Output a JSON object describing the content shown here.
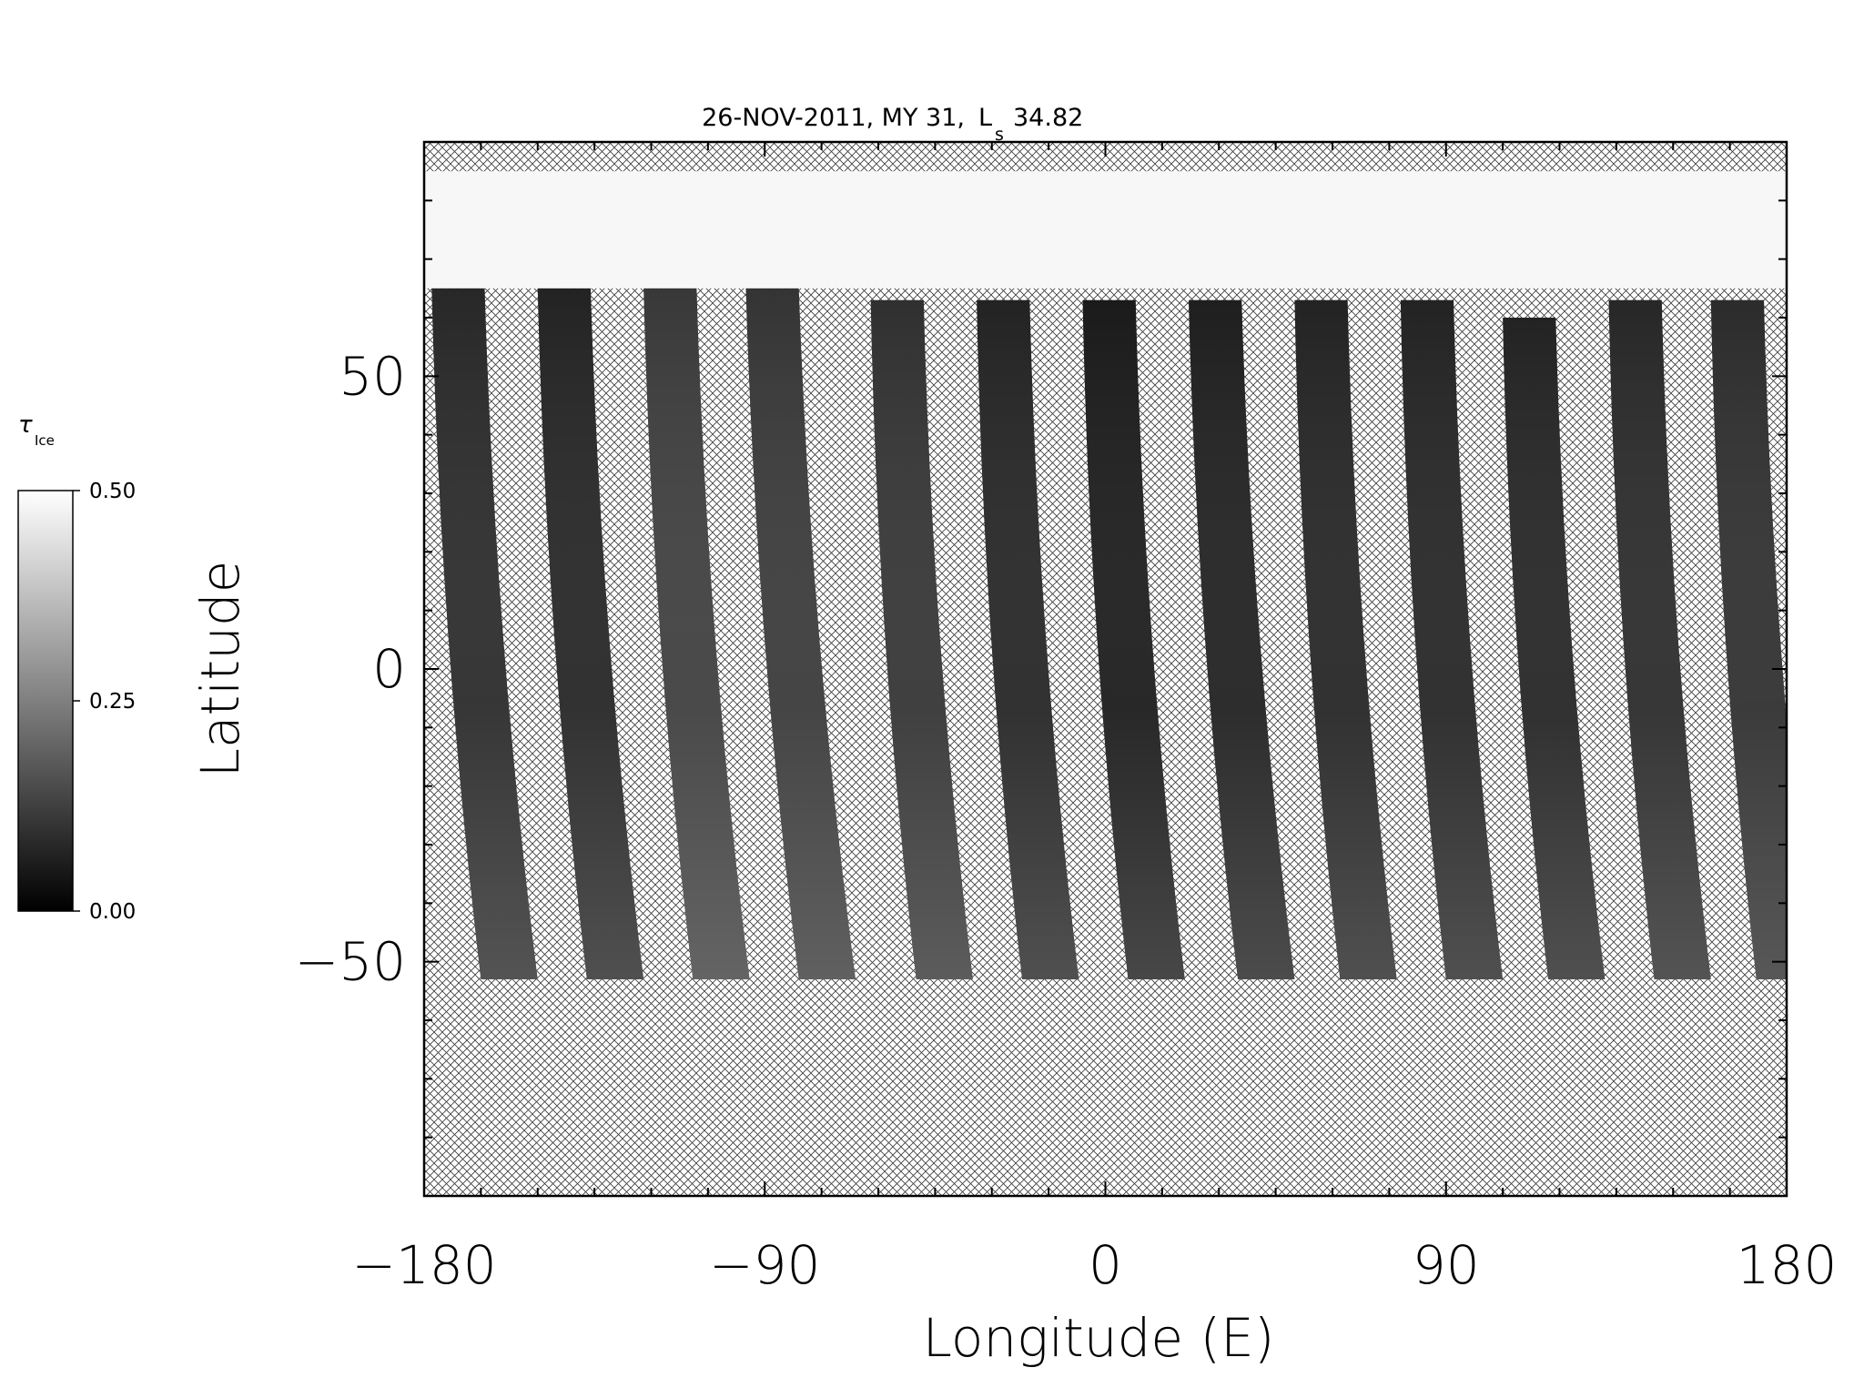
{
  "chart_data": {
    "type": "heatmap",
    "title": "26-NOV-2011, MY 31,",
    "title_ls_symbol": "L",
    "title_ls_subscript": "s",
    "title_ls_value": "34.82",
    "xlabel": "Longitude (E)",
    "ylabel": "Latitude",
    "xlim": [
      -180,
      180
    ],
    "ylim": [
      -90,
      90
    ],
    "x_ticks": [
      -180,
      -90,
      0,
      90,
      180
    ],
    "x_tick_labels": [
      "−180",
      "−90",
      "0",
      "90",
      "180"
    ],
    "y_ticks": [
      -50,
      0,
      50
    ],
    "y_tick_labels": [
      "−50",
      "0",
      "50"
    ],
    "colorbar": {
      "label": "τ",
      "label_subscript": "Ice",
      "range": [
        0.0,
        0.5
      ],
      "ticks": [
        0.0,
        0.25,
        0.5
      ],
      "tick_labels": [
        "0.00",
        "0.25",
        "0.50"
      ],
      "colors": [
        "#000000",
        "#ffffff"
      ]
    },
    "hatched_region": "no data",
    "cap_value": 0.5,
    "cap_latitude_range": [
      65,
      85
    ],
    "swaths": [
      {
        "lon_top": -178,
        "lon_bottom": -165,
        "lat_top": 65,
        "lat_bottom": -53,
        "mean_value": 0.09
      },
      {
        "lon_top": -150,
        "lon_bottom": -137,
        "lat_top": 65,
        "lat_bottom": -53,
        "mean_value": 0.08
      },
      {
        "lon_top": -122,
        "lon_bottom": -109,
        "lat_top": 65,
        "lat_bottom": -53,
        "mean_value": 0.13
      },
      {
        "lon_top": -95,
        "lon_bottom": -81,
        "lat_top": 65,
        "lat_bottom": -53,
        "mean_value": 0.12
      },
      {
        "lon_top": -62,
        "lon_bottom": -50,
        "lat_top": 63,
        "lat_bottom": -53,
        "mean_value": 0.11
      },
      {
        "lon_top": -34,
        "lon_bottom": -22,
        "lat_top": 63,
        "lat_bottom": -53,
        "mean_value": 0.08
      },
      {
        "lon_top": -6,
        "lon_bottom": 6,
        "lat_top": 63,
        "lat_bottom": -53,
        "mean_value": 0.06
      },
      {
        "lon_top": 22,
        "lon_bottom": 35,
        "lat_top": 63,
        "lat_bottom": -53,
        "mean_value": 0.07
      },
      {
        "lon_top": 50,
        "lon_bottom": 62,
        "lat_top": 63,
        "lat_bottom": -53,
        "mean_value": 0.08
      },
      {
        "lon_top": 78,
        "lon_bottom": 90,
        "lat_top": 63,
        "lat_bottom": -53,
        "mean_value": 0.08
      },
      {
        "lon_top": 105,
        "lon_bottom": 117,
        "lat_top": 60,
        "lat_bottom": -53,
        "mean_value": 0.08
      },
      {
        "lon_top": 133,
        "lon_bottom": 145,
        "lat_top": 63,
        "lat_bottom": -53,
        "mean_value": 0.09
      },
      {
        "lon_top": 160,
        "lon_bottom": 172,
        "lat_top": 63,
        "lat_bottom": -53,
        "mean_value": 0.1
      }
    ],
    "grid": false,
    "legend": "none"
  }
}
